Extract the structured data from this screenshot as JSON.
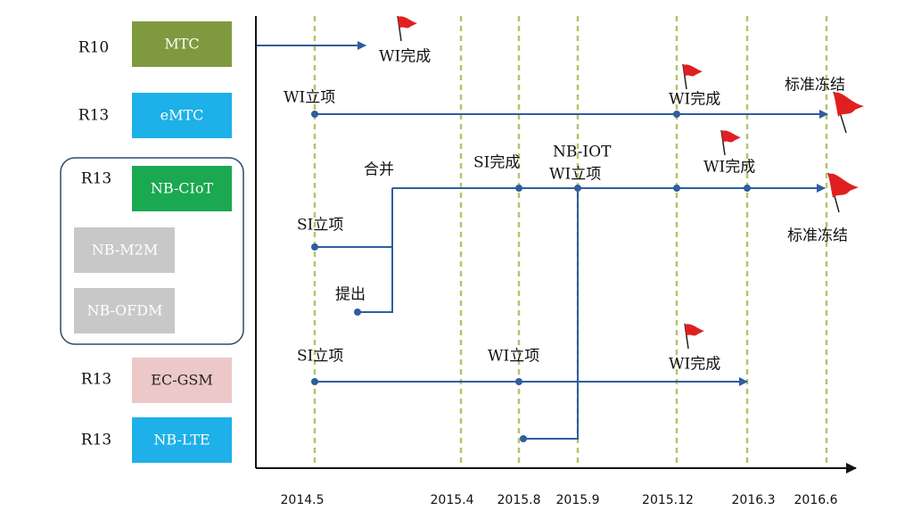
{
  "releases": [
    {
      "release": "R10",
      "name": "MTC"
    },
    {
      "release": "R13",
      "name": "eMTC"
    },
    {
      "release": "R13",
      "name": "NB-CIoT"
    },
    {
      "name": "NB-M2M"
    },
    {
      "name": "NB-OFDM"
    },
    {
      "release": "R13",
      "name": "EC-GSM"
    },
    {
      "release": "R13",
      "name": "NB-LTE"
    }
  ],
  "timeline": {
    "ticks": [
      "2014.5",
      "2015.4",
      "2015.8",
      "2015.9",
      "2015.12",
      "2016.3",
      "2016.6"
    ]
  },
  "annotations": {
    "mtc": [
      "WI完成"
    ],
    "emtc": [
      "WI立项",
      "WI完成",
      "标准冻结"
    ],
    "nb": [
      "合并",
      "SI完成",
      "NB-IOT",
      "WI立项",
      "WI完成",
      "标准冻结",
      "SI立项",
      "提出"
    ],
    "ecgsm": [
      "SI立项",
      "WI立项",
      "WI完成"
    ]
  }
}
